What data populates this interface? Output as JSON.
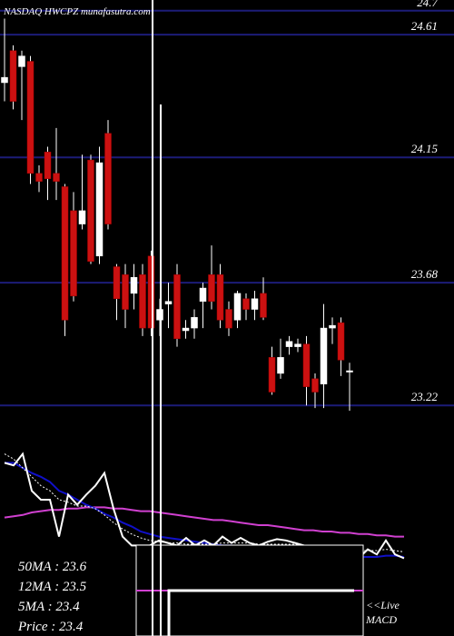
{
  "chart_data": {
    "type": "candlestick",
    "title": "NASDAQ HWCPZ munafasutra.com",
    "ylim": [
      23.19,
      24.74
    ],
    "yticks": [
      24.7,
      24.61,
      24.15,
      23.68,
      23.22
    ],
    "grid": true,
    "colors": {
      "up": "#ffffff",
      "down": "#cc1111",
      "grid": "#1c1c78"
    },
    "open": [
      24.43,
      24.55,
      24.49,
      24.51,
      24.09,
      24.17,
      24.09,
      24.04,
      23.95,
      23.9,
      24.14,
      23.78,
      24.24,
      23.74,
      23.71,
      23.64,
      23.71,
      23.78,
      23.54,
      23.6,
      23.71,
      23.5,
      23.51,
      23.61,
      23.71,
      23.71,
      23.58,
      23.54,
      23.62,
      23.58,
      23.64,
      23.4,
      23.34,
      23.44,
      23.44,
      23.45,
      23.32,
      23.3,
      23.51,
      23.53,
      23.35
    ],
    "high": [
      24.67,
      24.57,
      24.55,
      24.53,
      24.12,
      24.19,
      24.26,
      24.05,
      24.02,
      24.16,
      24.16,
      24.19,
      24.29,
      23.75,
      23.75,
      23.75,
      23.75,
      23.8,
      23.62,
      23.68,
      23.75,
      23.54,
      23.58,
      23.68,
      23.82,
      23.75,
      23.61,
      23.65,
      23.64,
      23.65,
      23.7,
      23.44,
      23.47,
      23.48,
      23.47,
      23.48,
      23.34,
      23.6,
      23.55,
      23.55,
      23.38
    ],
    "low": [
      24.36,
      24.33,
      24.29,
      24.05,
      24.02,
      23.99,
      23.99,
      23.48,
      23.61,
      23.88,
      23.75,
      23.75,
      23.88,
      23.54,
      23.51,
      23.58,
      23.48,
      23.48,
      23.48,
      23.51,
      23.44,
      23.47,
      23.47,
      23.51,
      23.58,
      23.51,
      23.48,
      23.51,
      23.54,
      23.54,
      23.54,
      23.26,
      23.32,
      23.41,
      23.42,
      23.22,
      23.21,
      23.21,
      23.45,
      23.33,
      23.2
    ],
    "close": [
      24.45,
      24.36,
      24.53,
      24.09,
      24.06,
      24.07,
      24.06,
      23.54,
      23.63,
      23.95,
      23.76,
      24.13,
      23.9,
      23.62,
      23.58,
      23.7,
      23.51,
      23.51,
      23.58,
      23.61,
      23.47,
      23.51,
      23.55,
      23.66,
      23.61,
      23.54,
      23.51,
      23.64,
      23.58,
      23.62,
      23.55,
      23.27,
      23.4,
      23.46,
      23.45,
      23.29,
      23.27,
      23.51,
      23.52,
      23.39,
      23.35
    ],
    "indicator": {
      "ylim": [
        0,
        100
      ],
      "series": [
        {
          "color": "#d040d0",
          "style": "solid",
          "values": [
            36,
            37,
            38,
            40,
            41,
            42,
            42,
            43,
            43,
            44,
            44,
            44,
            43,
            43,
            42,
            41,
            41,
            40,
            39,
            38,
            37,
            36,
            35,
            34,
            34,
            33,
            32,
            31,
            30,
            30,
            29,
            28,
            27,
            26,
            26,
            25,
            25,
            24,
            24,
            23,
            23,
            22,
            22,
            21,
            21
          ]
        },
        {
          "color": "#1010c8",
          "style": "solid",
          "values": [
            79,
            79,
            75,
            71,
            68,
            64,
            57,
            54,
            50,
            46,
            43,
            39,
            36,
            32,
            29,
            25,
            23,
            21,
            20,
            19,
            18,
            17,
            16,
            15,
            14,
            14,
            13,
            12,
            11,
            11,
            10,
            9,
            9,
            8,
            8,
            7,
            7,
            6,
            6,
            5,
            5,
            5,
            6,
            6,
            5
          ]
        },
        {
          "color": "#ffffff",
          "style": "dotted",
          "values": [
            86,
            82,
            75,
            68,
            61,
            57,
            50,
            48,
            45,
            45,
            43,
            38,
            32,
            27,
            23,
            20,
            18,
            17,
            16,
            16,
            15,
            15,
            15,
            15,
            16,
            16,
            16,
            16,
            15,
            15,
            15,
            15,
            15,
            14,
            13,
            12,
            11,
            10,
            10,
            10,
            10,
            10,
            11,
            10,
            9
          ]
        },
        {
          "color": "#ffffff",
          "style": "solid",
          "values": [
            79,
            77,
            86,
            57,
            50,
            50,
            21,
            54,
            46,
            54,
            61,
            71,
            43,
            21,
            14,
            14,
            14,
            18,
            16,
            14,
            20,
            14,
            18,
            14,
            21,
            16,
            20,
            16,
            14,
            17,
            19,
            18,
            16,
            14,
            11,
            7,
            9,
            11,
            0,
            4,
            11,
            7,
            18,
            7,
            4
          ]
        }
      ]
    },
    "stats": [
      "50MA : 23.6",
      "12MA : 23.5",
      "5MA : 23.4",
      "Price   : 23.4"
    ],
    "macd_labels": [
      "<<Live",
      "MACD"
    ]
  }
}
